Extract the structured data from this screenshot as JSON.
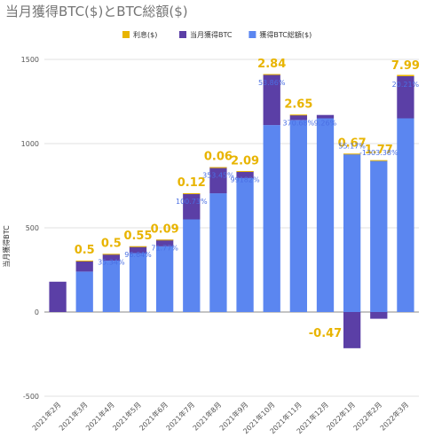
{
  "title": "当月獲得BTC($)とBTC総額($)",
  "chart_data": {
    "type": "bar",
    "stacked": true,
    "title": "当月獲得BTC($)とBTC総額($)",
    "ylabel": "当月獲得BTC",
    "xlabel": "",
    "ylim": [
      -500,
      1500
    ],
    "yticks": [
      "1500",
      "1000",
      "500",
      "0",
      "-500"
    ],
    "ytick_values": [
      1500,
      1000,
      500,
      0,
      -500
    ],
    "grid": true,
    "legend_position": "top",
    "categories": [
      "2021年2月",
      "2021年3月",
      "2021年4月",
      "2021年5月",
      "2021年6月",
      "2021年7月",
      "2021年8月",
      "2021年9月",
      "2021年10月",
      "2021年11月",
      "2021年12月",
      "2022年1月",
      "2022年2月",
      "2022年3月"
    ],
    "series": [
      {
        "name": "獲得BTC総額($)",
        "color": "#5b86f0",
        "values": [
          0,
          240,
          305,
          350,
          390,
          550,
          705,
          795,
          1110,
          1140,
          1150,
          940,
          900,
          1150
        ]
      },
      {
        "name": "当月獲得BTC",
        "color": "#5b3fa6",
        "values": [
          180,
          65,
          40,
          40,
          40,
          155,
          155,
          40,
          300,
          30,
          20,
          -215,
          -40,
          250
        ]
      },
      {
        "name": "利息($)",
        "color": "#e8b400",
        "values": [
          0,
          0.5,
          0.5,
          0.55,
          0.09,
          0.12,
          0.06,
          2.09,
          2.84,
          2.65,
          -0.47,
          0.67,
          1.77,
          7.99
        ]
      }
    ],
    "interest_labels": [
      "",
      "0.5",
      "0.5",
      "0.55",
      "0.09",
      "0.12",
      "0.06",
      "2.09",
      "2.84",
      "2.65",
      "-0.47",
      "0.67",
      "1.77",
      "7.99"
    ],
    "percent_labels": [
      "",
      "",
      "35.34%",
      "96.64%",
      "71.77%",
      "100.73%",
      "353.45%",
      "99182%",
      "53.86%",
      "370.68%",
      "9.26%",
      "55.17%",
      "-1303.38%",
      "20.21%"
    ]
  }
}
